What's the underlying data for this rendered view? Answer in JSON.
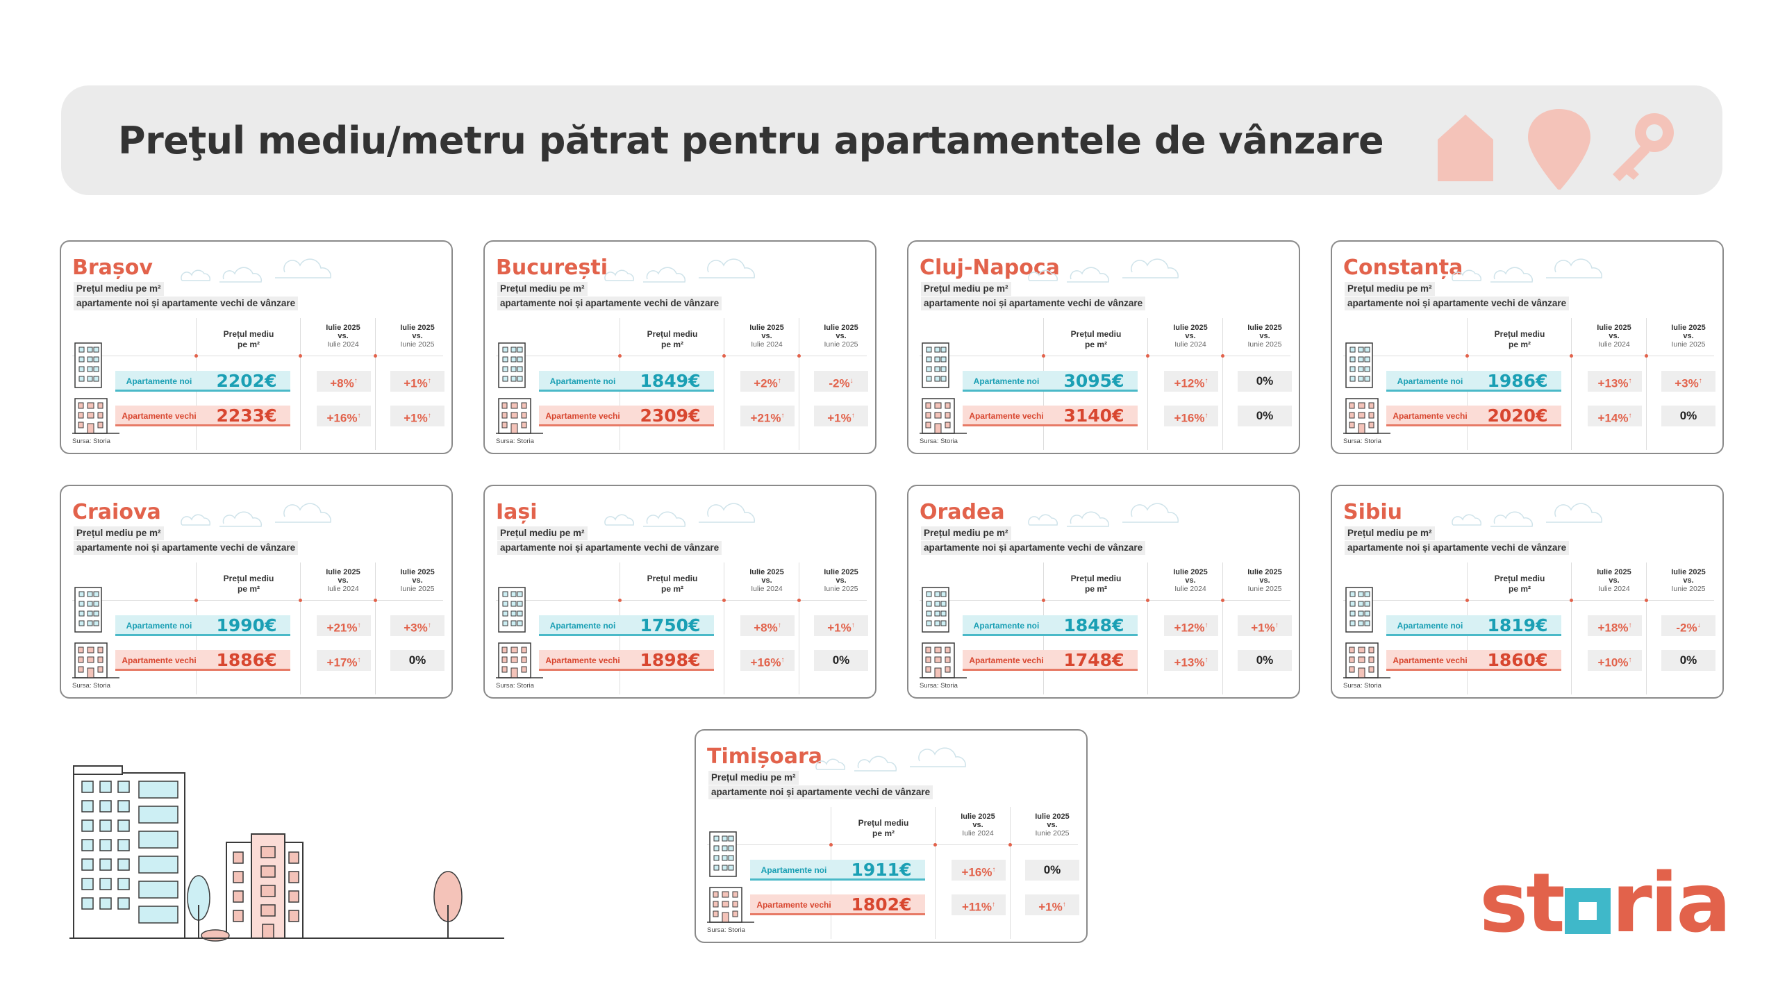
{
  "header": {
    "title": "Preţul mediu/metru pătrat pentru apartamentele de vânzare"
  },
  "labels": {
    "subtitle_line1": "Prețul mediu pe m²",
    "subtitle_line2": "apartamente noi și apartamente vechi de vânzare",
    "price_header_line1": "Prețul mediu",
    "price_header_line2": "pe m²",
    "yoy_line1": "Iulie 2025",
    "yoy_line2": "vs.",
    "yoy_line3": "Iulie 2024",
    "mom_line1": "Iulie 2025",
    "mom_line2": "vs.",
    "mom_line3": "Iunie 2025",
    "new_label": "Apartamente noi",
    "old_label": "Apartamente vechi",
    "source": "Sursa: Storia",
    "arrow_up": "↑",
    "arrow_down": "↓"
  },
  "cities": [
    {
      "name": "Brașov",
      "new_price": "2202€",
      "old_price": "2233€",
      "new_yoy": "+8%",
      "new_yoy_dir": "up",
      "new_mom": "+1%",
      "new_mom_dir": "up",
      "old_yoy": "+16%",
      "old_yoy_dir": "up",
      "old_mom": "+1%",
      "old_mom_dir": "up"
    },
    {
      "name": "București",
      "new_price": "1849€",
      "old_price": "2309€",
      "new_yoy": "+2%",
      "new_yoy_dir": "up",
      "new_mom": "-2%",
      "new_mom_dir": "down",
      "old_yoy": "+21%",
      "old_yoy_dir": "up",
      "old_mom": "+1%",
      "old_mom_dir": "up"
    },
    {
      "name": "Cluj-Napoca",
      "new_price": "3095€",
      "old_price": "3140€",
      "new_yoy": "+12%",
      "new_yoy_dir": "up",
      "new_mom": "0%",
      "new_mom_dir": "none",
      "old_yoy": "+16%",
      "old_yoy_dir": "up",
      "old_mom": "0%",
      "old_mom_dir": "none"
    },
    {
      "name": "Constanța",
      "new_price": "1986€",
      "old_price": "2020€",
      "new_yoy": "+13%",
      "new_yoy_dir": "up",
      "new_mom": "+3%",
      "new_mom_dir": "up",
      "old_yoy": "+14%",
      "old_yoy_dir": "up",
      "old_mom": "0%",
      "old_mom_dir": "none"
    },
    {
      "name": "Craiova",
      "new_price": "1990€",
      "old_price": "1886€",
      "new_yoy": "+21%",
      "new_yoy_dir": "up",
      "new_mom": "+3%",
      "new_mom_dir": "up",
      "old_yoy": "+17%",
      "old_yoy_dir": "up",
      "old_mom": "0%",
      "old_mom_dir": "none"
    },
    {
      "name": "Iași",
      "new_price": "1750€",
      "old_price": "1898€",
      "new_yoy": "+8%",
      "new_yoy_dir": "up",
      "new_mom": "+1%",
      "new_mom_dir": "up",
      "old_yoy": "+16%",
      "old_yoy_dir": "up",
      "old_mom": "0%",
      "old_mom_dir": "none"
    },
    {
      "name": "Oradea",
      "new_price": "1848€",
      "old_price": "1748€",
      "new_yoy": "+12%",
      "new_yoy_dir": "up",
      "new_mom": "+1%",
      "new_mom_dir": "up",
      "old_yoy": "+13%",
      "old_yoy_dir": "up",
      "old_mom": "0%",
      "old_mom_dir": "none"
    },
    {
      "name": "Sibiu",
      "new_price": "1819€",
      "old_price": "1860€",
      "new_yoy": "+18%",
      "new_yoy_dir": "up",
      "new_mom": "-2%",
      "new_mom_dir": "down",
      "old_yoy": "+10%",
      "old_yoy_dir": "up",
      "old_mom": "0%",
      "old_mom_dir": "none"
    },
    {
      "name": "Timișoara",
      "new_price": "1911€",
      "old_price": "1802€",
      "new_yoy": "+16%",
      "new_yoy_dir": "up",
      "new_mom": "0%",
      "new_mom_dir": "none",
      "old_yoy": "+11%",
      "old_yoy_dir": "up",
      "old_mom": "+1%",
      "old_mom_dir": "up"
    }
  ],
  "logo": {
    "text": "storia",
    "accent_color": "#e2624b",
    "square_color": "#3fb8c9"
  },
  "icons": [
    "house-icon",
    "location-pin-icon",
    "key-icon",
    "cloud-icon",
    "building-icon",
    "city-illustration-icon"
  ],
  "colors": {
    "accent": "#e2624b",
    "new_teal": "#1a9fb4",
    "new_bg": "#d8f1f4",
    "old_red": "#d8462f",
    "old_bg": "#fbdcd6",
    "banner_bg": "#ebebeb"
  }
}
